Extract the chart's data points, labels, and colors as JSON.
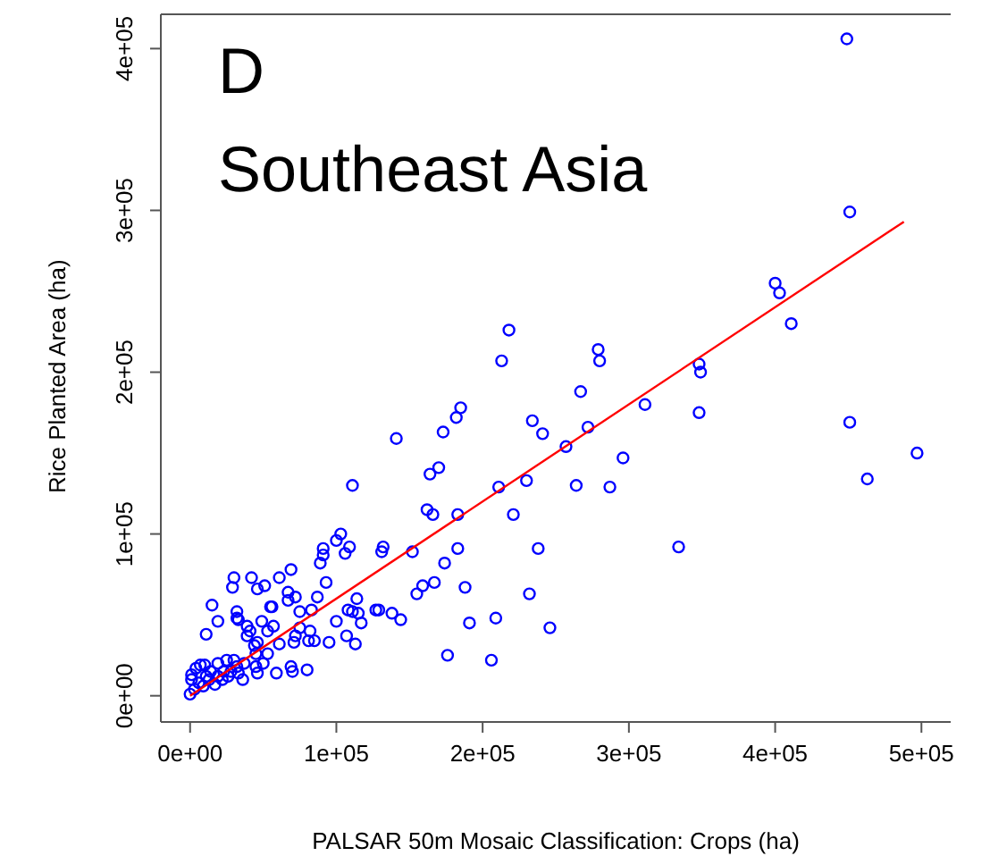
{
  "chart_data": {
    "type": "scatter",
    "title": "D",
    "subtitle": "Southeast Asia",
    "xlabel": "PALSAR 50m Mosaic Classification: Crops (ha)",
    "ylabel": "Rice Planted Area (ha)",
    "xlim": [
      -20000,
      520000
    ],
    "ylim": [
      -16200,
      421200
    ],
    "xticks": [
      {
        "value": 0,
        "label": "0e+00"
      },
      {
        "value": 100000,
        "label": "1e+05"
      },
      {
        "value": 200000,
        "label": "2e+05"
      },
      {
        "value": 300000,
        "label": "3e+05"
      },
      {
        "value": 400000,
        "label": "4e+05"
      },
      {
        "value": 500000,
        "label": "5e+05"
      }
    ],
    "yticks": [
      {
        "value": 0,
        "label": "0e+00"
      },
      {
        "value": 100000,
        "label": "1e+05"
      },
      {
        "value": 200000,
        "label": "2e+05"
      },
      {
        "value": 300000,
        "label": "3e+05"
      },
      {
        "value": 400000,
        "label": "4e+05"
      }
    ],
    "grid": false,
    "marker": "circle",
    "series": [
      {
        "color": "#0000ff",
        "x": [
          449000,
          451000,
          400000,
          403000,
          411000,
          218000,
          279000,
          280000,
          213000,
          348000,
          349000,
          348000,
          267000,
          311000,
          185000,
          182000,
          173000,
          234000,
          241000,
          141000,
          272000,
          257000,
          296000,
          451000,
          497000,
          463000,
          211000,
          230000,
          264000,
          287000,
          164000,
          170000,
          111000,
          162000,
          166000,
          183000,
          221000,
          334000,
          103000,
          100000,
          109000,
          106000,
          91000,
          91000,
          89000,
          93000,
          132000,
          131000,
          152000,
          183000,
          238000,
          174000,
          69000,
          61000,
          42000,
          30000,
          29000,
          46000,
          51000,
          67000,
          72000,
          67000,
          87000,
          56000,
          55000,
          15000,
          32000,
          19000,
          11000,
          33000,
          32000,
          49000,
          57000,
          75000,
          83000,
          39000,
          41000,
          53000,
          100000,
          108000,
          111000,
          114000,
          115000,
          117000,
          127000,
          129000,
          138000,
          144000,
          155000,
          159000,
          167000,
          188000,
          191000,
          209000,
          232000,
          246000,
          176000,
          206000,
          75000,
          72000,
          82000,
          81000,
          85000,
          71000,
          95000,
          107000,
          113000,
          61000,
          39000,
          44000,
          46000,
          53000,
          45000,
          50000,
          45000,
          46000,
          59000,
          69000,
          70000,
          80000,
          36000,
          37000,
          0,
          3000,
          1000,
          1000,
          4000,
          7000,
          10000,
          11000,
          14000,
          17000,
          19000,
          22000,
          25000,
          28000,
          30000,
          32000,
          23000,
          6000,
          9000,
          19000,
          26000,
          33000,
          13000
        ],
        "values": [
          406000,
          299000,
          255000,
          249000,
          230000,
          226000,
          214000,
          207000,
          207000,
          205000,
          200000,
          175000,
          188000,
          180000,
          178000,
          172000,
          163000,
          170000,
          162000,
          159000,
          166000,
          154000,
          147000,
          169000,
          150000,
          134000,
          129000,
          133000,
          130000,
          129000,
          137000,
          141000,
          130000,
          115000,
          112000,
          112000,
          112000,
          92000,
          100000,
          96000,
          92000,
          88000,
          91000,
          87000,
          82000,
          70000,
          92000,
          89000,
          89000,
          91000,
          91000,
          82000,
          78000,
          73000,
          73000,
          73000,
          67000,
          66000,
          68000,
          64000,
          61000,
          59000,
          61000,
          55000,
          55000,
          56000,
          52000,
          46000,
          38000,
          47000,
          48000,
          46000,
          43000,
          52000,
          53000,
          43000,
          40000,
          40000,
          46000,
          53000,
          52000,
          60000,
          51000,
          45000,
          53000,
          53000,
          51000,
          47000,
          63000,
          68000,
          70000,
          67000,
          45000,
          48000,
          63000,
          42000,
          25000,
          22000,
          42000,
          37000,
          40000,
          34000,
          34000,
          33000,
          33000,
          37000,
          32000,
          32000,
          37000,
          31000,
          33000,
          26000,
          26000,
          20000,
          18000,
          14000,
          14000,
          18000,
          15000,
          16000,
          10000,
          20000,
          1000,
          4000,
          10000,
          13000,
          17000,
          19000,
          19000,
          12000,
          15000,
          7000,
          20000,
          10000,
          22000,
          15000,
          22000,
          18000,
          15000,
          8000,
          6000,
          12000,
          12000,
          14000,
          10000
        ]
      },
      {
        "type": "line",
        "color": "#ff0000",
        "marker": "none",
        "x": [
          0,
          488000
        ],
        "values": [
          0,
          293000
        ]
      }
    ]
  }
}
